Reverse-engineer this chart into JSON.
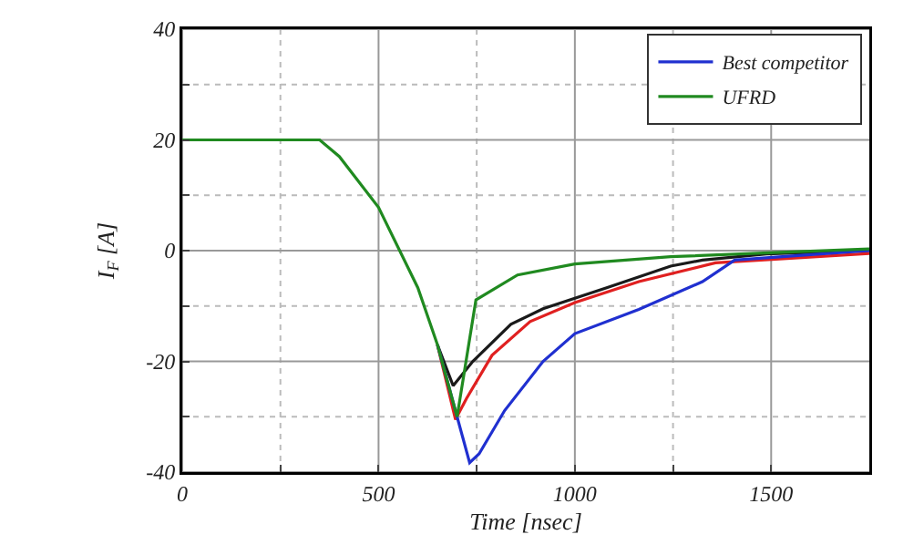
{
  "chart_data": {
    "type": "line",
    "xlabel": "Time [nsec]",
    "ylabel": "I$_{F}$ [A]",
    "xlim": [
      0,
      1750
    ],
    "ylim": [
      -40,
      40
    ],
    "xticks": [
      0,
      {
        "value": 250,
        "label": null
      },
      500,
      {
        "value": 750,
        "label": null
      },
      1000,
      {
        "value": 1250,
        "label": null
      },
      1500
    ],
    "yticks": [
      -40,
      {
        "value": -30,
        "label": null
      },
      -20,
      {
        "value": -10,
        "label": null
      },
      0,
      {
        "value": 10,
        "label": null
      },
      20,
      {
        "value": 30,
        "label": null
      },
      40
    ],
    "grid": true,
    "legend": "top right",
    "marker": "none",
    "line_style": "solid",
    "series": [
      {
        "name": null,
        "color": "#1a1a1a",
        "x": [
          650,
          690,
          740,
          837,
          919,
          1081,
          1244,
          1325,
          1488,
          1750
        ],
        "values": [
          -17,
          -24.4,
          -20,
          -13.3,
          -10.5,
          -6.7,
          -2.8,
          -1.7,
          -0.6,
          0
        ]
      },
      {
        "name": null,
        "color": "#e02020",
        "x": [
          650,
          696,
          724,
          789,
          886,
          1000,
          1163,
          1358,
          1569,
          1750
        ],
        "values": [
          -17,
          -30.5,
          -26.7,
          -18.9,
          -12.8,
          -9.4,
          -5.6,
          -2.2,
          -1.3,
          -0.5
        ]
      },
      {
        "name": "Best competitor",
        "color": "#2030d0",
        "x": [
          650,
          700,
          732,
          756,
          821,
          919,
          1000,
          1163,
          1325,
          1407,
          1569,
          1750
        ],
        "values": [
          -17,
          -30,
          -38.3,
          -36.7,
          -28.9,
          -20,
          -15,
          -10.6,
          -5.6,
          -1.7,
          -0.9,
          0
        ]
      },
      {
        "name": "UFRD",
        "color": "#208a20",
        "x": [
          0,
          350,
          400,
          500,
          600,
          650,
          700,
          748,
          854,
          1000,
          1244,
          1569,
          1750
        ],
        "values": [
          20,
          20,
          17,
          7.8,
          -6.7,
          -17,
          -30,
          -8.9,
          -4.4,
          -2.4,
          -1.1,
          -0.2,
          0.3
        ]
      }
    ]
  }
}
